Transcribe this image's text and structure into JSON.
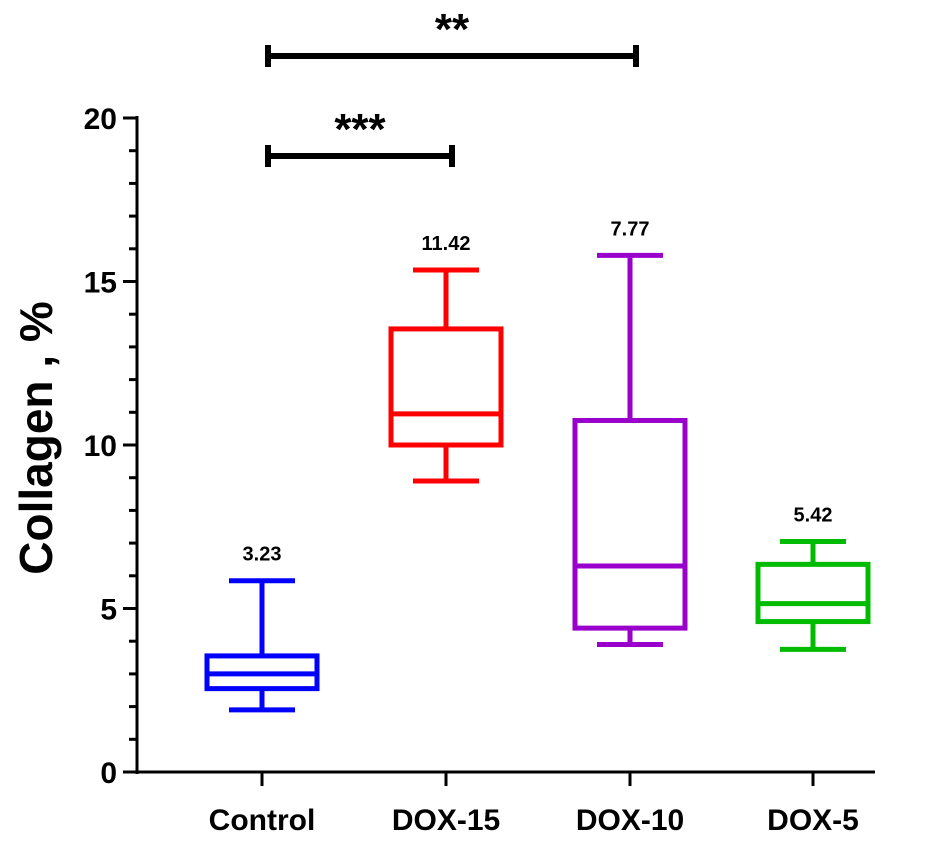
{
  "chart_data": {
    "type": "box",
    "ylabel": "Collagen , %",
    "xlabel": "",
    "ylim": [
      0,
      20
    ],
    "yticks": [
      "0",
      "5",
      "10",
      "15",
      "20"
    ],
    "categories": [
      "Control",
      "DOX-15",
      "DOX-10",
      "DOX-5"
    ],
    "colors": [
      "#0000ff",
      "#ff0000",
      "#9900cc",
      "#00bb00"
    ],
    "boxes": [
      {
        "category": "Control",
        "min": 1.9,
        "q1": 2.55,
        "median": 3.0,
        "q3": 3.55,
        "max": 5.85,
        "label": "3.23"
      },
      {
        "category": "DOX-15",
        "min": 8.9,
        "q1": 10.0,
        "median": 10.95,
        "q3": 13.55,
        "max": 15.35,
        "label": "11.42"
      },
      {
        "category": "DOX-10",
        "min": 3.9,
        "q1": 4.4,
        "median": 6.3,
        "q3": 10.75,
        "max": 15.8,
        "label": "7.77"
      },
      {
        "category": "DOX-5",
        "min": 3.75,
        "q1": 4.6,
        "median": 5.15,
        "q3": 6.35,
        "max": 7.05,
        "label": "5.42"
      }
    ],
    "significance": [
      {
        "from": "Control",
        "to": "DOX-10",
        "label": "**"
      },
      {
        "from": "Control",
        "to": "DOX-15",
        "label": "***"
      }
    ],
    "grid": false,
    "legend": "none"
  }
}
